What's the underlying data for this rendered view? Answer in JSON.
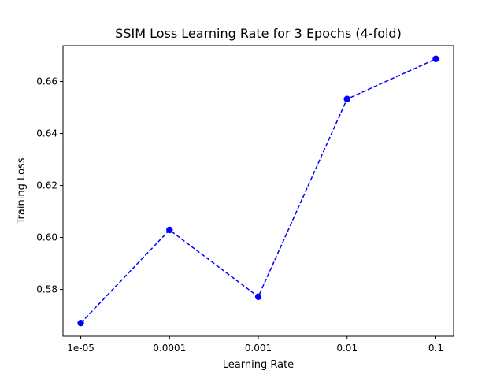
{
  "chart_data": {
    "type": "line",
    "title": "SSIM Loss Learning Rate for 3 Epochs (4-fold)",
    "xlabel": "Learning Rate",
    "ylabel": "Training Loss",
    "x_scale": "log",
    "categories": [
      "1e-05",
      "0.0001",
      "0.001",
      "0.01",
      "0.1"
    ],
    "x": [
      1e-05,
      0.0001,
      0.001,
      0.01,
      0.1
    ],
    "series": [
      {
        "values": [
          0.5671,
          0.6029,
          0.5772,
          0.6533,
          0.6687
        ],
        "color": "#0000ff",
        "line_style": "dashed",
        "marker": "circle"
      }
    ],
    "yticks": [
      "0.58",
      "0.60",
      "0.62",
      "0.64",
      "0.66"
    ],
    "ylim": [
      0.562,
      0.6738
    ],
    "grid": false,
    "legend": "none"
  }
}
